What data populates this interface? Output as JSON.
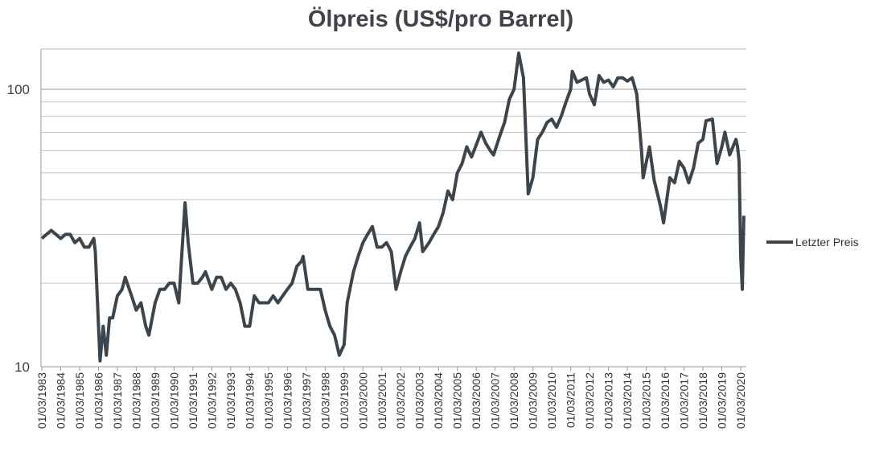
{
  "chart_data": {
    "type": "line",
    "title": "Ölpreis (US$/pro Barrel)",
    "xlabel": "",
    "ylabel": "",
    "y_scale": "log",
    "ylim": [
      10,
      140
    ],
    "y_ticks": [
      10,
      100
    ],
    "y_gridlines": [
      20,
      30,
      40,
      50,
      60,
      70,
      80,
      90,
      100
    ],
    "grid": true,
    "legend_position": "right",
    "line_color": "#3d454c",
    "x_tick_labels": [
      "01/03/1983",
      "01/03/1984",
      "01/03/1985",
      "01/03/1986",
      "01/03/1987",
      "01/03/1988",
      "01/03/1989",
      "01/03/1990",
      "01/03/1991",
      "01/03/1992",
      "01/03/1993",
      "01/03/1994",
      "01/03/1995",
      "01/03/1996",
      "01/03/1997",
      "01/03/1998",
      "01/03/1999",
      "01/03/2000",
      "01/03/2001",
      "01/03/2002",
      "01/03/2003",
      "01/03/2004",
      "01/03/2005",
      "01/03/2006",
      "01/03/2007",
      "01/03/2008",
      "01/03/2009",
      "01/03/2010",
      "01/03/2011",
      "01/03/2012",
      "01/03/2013",
      "01/03/2014",
      "01/03/2015",
      "01/03/2016",
      "01/03/2017",
      "01/03/2018",
      "01/03/2019",
      "01/03/2020"
    ],
    "series": [
      {
        "name": "Letzter Preis",
        "points": [
          [
            "1983-03",
            29
          ],
          [
            "1983-06",
            30
          ],
          [
            "1983-09",
            31
          ],
          [
            "1983-12",
            30
          ],
          [
            "1984-03",
            29
          ],
          [
            "1984-06",
            30
          ],
          [
            "1984-09",
            30
          ],
          [
            "1984-12",
            28
          ],
          [
            "1985-03",
            29
          ],
          [
            "1985-06",
            27
          ],
          [
            "1985-09",
            27
          ],
          [
            "1985-12",
            29
          ],
          [
            "1986-01",
            26
          ],
          [
            "1986-03",
            14
          ],
          [
            "1986-04",
            10.5
          ],
          [
            "1986-06",
            14
          ],
          [
            "1986-08",
            11
          ],
          [
            "1986-10",
            15
          ],
          [
            "1986-12",
            15
          ],
          [
            "1987-03",
            18
          ],
          [
            "1987-06",
            19
          ],
          [
            "1987-08",
            21
          ],
          [
            "1987-12",
            18
          ],
          [
            "1988-03",
            16
          ],
          [
            "1988-06",
            17
          ],
          [
            "1988-09",
            14
          ],
          [
            "1988-11",
            13
          ],
          [
            "1989-03",
            17
          ],
          [
            "1989-06",
            19
          ],
          [
            "1989-09",
            19
          ],
          [
            "1989-12",
            20
          ],
          [
            "1990-03",
            20
          ],
          [
            "1990-06",
            17
          ],
          [
            "1990-10",
            39
          ],
          [
            "1990-12",
            28
          ],
          [
            "1991-03",
            20
          ],
          [
            "1991-06",
            20
          ],
          [
            "1991-09",
            21
          ],
          [
            "1991-11",
            22
          ],
          [
            "1992-03",
            19
          ],
          [
            "1992-06",
            21
          ],
          [
            "1992-09",
            21
          ],
          [
            "1992-12",
            19
          ],
          [
            "1993-03",
            20
          ],
          [
            "1993-06",
            19
          ],
          [
            "1993-09",
            17
          ],
          [
            "1993-12",
            14
          ],
          [
            "1994-03",
            14
          ],
          [
            "1994-06",
            18
          ],
          [
            "1994-09",
            17
          ],
          [
            "1994-12",
            17
          ],
          [
            "1995-03",
            17
          ],
          [
            "1995-06",
            18
          ],
          [
            "1995-09",
            17
          ],
          [
            "1995-12",
            18
          ],
          [
            "1996-03",
            19
          ],
          [
            "1996-06",
            20
          ],
          [
            "1996-09",
            23
          ],
          [
            "1996-12",
            24
          ],
          [
            "1997-01",
            25
          ],
          [
            "1997-04",
            19
          ],
          [
            "1997-08",
            19
          ],
          [
            "1997-12",
            19
          ],
          [
            "1998-03",
            16
          ],
          [
            "1998-06",
            14
          ],
          [
            "1998-09",
            13
          ],
          [
            "1998-12",
            11
          ],
          [
            "1999-03",
            12
          ],
          [
            "1999-05",
            17
          ],
          [
            "1999-09",
            22
          ],
          [
            "1999-12",
            25
          ],
          [
            "2000-03",
            28
          ],
          [
            "2000-06",
            30
          ],
          [
            "2000-09",
            32
          ],
          [
            "2000-12",
            27
          ],
          [
            "2001-03",
            27
          ],
          [
            "2001-06",
            28
          ],
          [
            "2001-09",
            26
          ],
          [
            "2001-12",
            19
          ],
          [
            "2002-03",
            22
          ],
          [
            "2002-06",
            25
          ],
          [
            "2002-09",
            27
          ],
          [
            "2002-12",
            29
          ],
          [
            "2003-03",
            33
          ],
          [
            "2003-05",
            26
          ],
          [
            "2003-09",
            28
          ],
          [
            "2003-12",
            30
          ],
          [
            "2004-03",
            32
          ],
          [
            "2004-06",
            36
          ],
          [
            "2004-09",
            43
          ],
          [
            "2004-12",
            40
          ],
          [
            "2005-03",
            50
          ],
          [
            "2005-06",
            54
          ],
          [
            "2005-09",
            62
          ],
          [
            "2005-12",
            57
          ],
          [
            "2006-03",
            63
          ],
          [
            "2006-06",
            70
          ],
          [
            "2006-09",
            64
          ],
          [
            "2006-12",
            60
          ],
          [
            "2007-02",
            58
          ],
          [
            "2007-06",
            68
          ],
          [
            "2007-09",
            76
          ],
          [
            "2007-12",
            92
          ],
          [
            "2008-03",
            100
          ],
          [
            "2008-06",
            135
          ],
          [
            "2008-09",
            110
          ],
          [
            "2008-12",
            42
          ],
          [
            "2009-03",
            48
          ],
          [
            "2009-06",
            66
          ],
          [
            "2009-09",
            70
          ],
          [
            "2009-12",
            76
          ],
          [
            "2010-03",
            78
          ],
          [
            "2010-06",
            73
          ],
          [
            "2010-09",
            80
          ],
          [
            "2010-12",
            90
          ],
          [
            "2011-03",
            100
          ],
          [
            "2011-04",
            116
          ],
          [
            "2011-07",
            106
          ],
          [
            "2011-10",
            108
          ],
          [
            "2012-01",
            110
          ],
          [
            "2012-03",
            96
          ],
          [
            "2012-06",
            88
          ],
          [
            "2012-09",
            112
          ],
          [
            "2012-12",
            106
          ],
          [
            "2013-03",
            108
          ],
          [
            "2013-06",
            102
          ],
          [
            "2013-09",
            110
          ],
          [
            "2013-12",
            110
          ],
          [
            "2014-03",
            107
          ],
          [
            "2014-06",
            110
          ],
          [
            "2014-09",
            96
          ],
          [
            "2014-12",
            60
          ],
          [
            "2015-01",
            48
          ],
          [
            "2015-05",
            62
          ],
          [
            "2015-08",
            47
          ],
          [
            "2015-12",
            38
          ],
          [
            "2016-02",
            33
          ],
          [
            "2016-06",
            48
          ],
          [
            "2016-09",
            46
          ],
          [
            "2016-12",
            55
          ],
          [
            "2017-03",
            52
          ],
          [
            "2017-06",
            46
          ],
          [
            "2017-09",
            52
          ],
          [
            "2017-12",
            64
          ],
          [
            "2018-03",
            66
          ],
          [
            "2018-05",
            77
          ],
          [
            "2018-09",
            78
          ],
          [
            "2018-12",
            54
          ],
          [
            "2019-03",
            62
          ],
          [
            "2019-05",
            70
          ],
          [
            "2019-08",
            58
          ],
          [
            "2019-12",
            66
          ],
          [
            "2020-01",
            62
          ],
          [
            "2020-02",
            55
          ],
          [
            "2020-03",
            25
          ],
          [
            "2020-04",
            19
          ],
          [
            "2020-05",
            35
          ]
        ]
      }
    ]
  }
}
